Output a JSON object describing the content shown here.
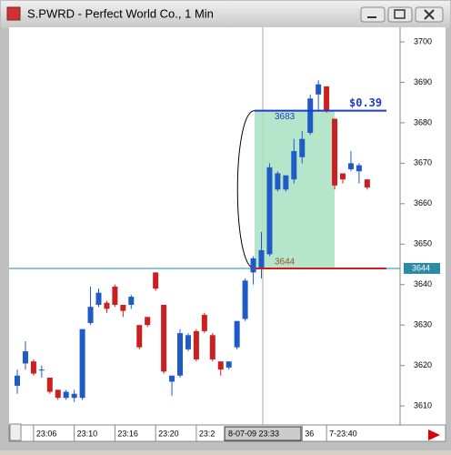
{
  "window": {
    "title": "S.PWRD - Perfect World Co., 1 Min"
  },
  "chart_data": {
    "type": "candlestick",
    "categories": [
      null,
      null,
      "23:06",
      null,
      null,
      null,
      null,
      "23:10",
      null,
      null,
      null,
      null,
      "23:16",
      null,
      null,
      null,
      null,
      "23:20",
      null,
      null,
      null,
      null,
      "23:2",
      null,
      null,
      null,
      null,
      null,
      null,
      null,
      null,
      null,
      null,
      null,
      null,
      "36",
      null,
      null,
      "7-23:40",
      null,
      null,
      null,
      null,
      null
    ],
    "open": [
      3615,
      3620.5,
      3621,
      3619,
      3617,
      3614,
      3612,
      3612,
      3612,
      3630.5,
      3635,
      3635.5,
      3639.5,
      3635,
      3635,
      3630,
      3632,
      3643,
      3635,
      3616,
      3617.5,
      3624,
      3628.5,
      3632.5,
      3627.5,
      3621,
      3619.5,
      3624.5,
      3631.5,
      3643,
      3644,
      3647.5,
      3663.5,
      3663.5,
      3666,
      3671.5,
      3677.5,
      3687,
      3689,
      3681,
      3667.5,
      3668.5,
      3668,
      3666
    ],
    "high": [
      3619,
      3626,
      3621.5,
      3620,
      3617,
      3614,
      3614,
      3614,
      3629,
      3639.5,
      3639,
      3636,
      3640,
      3635,
      3637.5,
      3630,
      3632,
      3643,
      3635,
      3617.5,
      3629,
      3628,
      3629,
      3633,
      3628,
      3621,
      3621,
      3631,
      3641.5,
      3647,
      3653,
      3670,
      3668,
      3667,
      3676,
      3678,
      3687,
      3690.5,
      3689,
      3681,
      3667.5,
      3673,
      3670,
      3666
    ],
    "low": [
      3613,
      3619,
      3617.5,
      3617,
      3613,
      3611.5,
      3611.5,
      3611,
      3611.5,
      3630,
      3634.5,
      3633,
      3634.5,
      3632,
      3634,
      3624,
      3629.5,
      3638.5,
      3618,
      3612.5,
      3617,
      3623.5,
      3621,
      3628,
      3621,
      3617.5,
      3619,
      3624,
      3631,
      3640,
      3641.5,
      3647,
      3663,
      3663,
      3665,
      3670,
      3677,
      3683,
      3682.5,
      3663.5,
      3665,
      3668,
      3665,
      3663.5
    ],
    "close": [
      3617.5,
      3623.5,
      3618,
      3619,
      3613.5,
      3612,
      3613.5,
      3613,
      3629,
      3634.5,
      3638,
      3634,
      3635,
      3633.5,
      3637,
      3624.5,
      3630,
      3639,
      3618.5,
      3617.5,
      3628,
      3627.5,
      3621.5,
      3628.5,
      3621.5,
      3619,
      3621,
      3631,
      3641,
      3646.5,
      3648.5,
      3669,
      3667.5,
      3667,
      3673,
      3676,
      3686,
      3689.5,
      3683,
      3664.5,
      3666,
      3670,
      3669.5,
      3664
    ],
    "up_color": "#1e5bc6",
    "down_color": "#cc1f1f",
    "ylim": [
      3605.3,
      3703.6
    ],
    "yticks": [
      3610,
      3620,
      3630,
      3640,
      3650,
      3660,
      3670,
      3680,
      3690,
      3700
    ],
    "last_price": 3644,
    "crosshair_label": "8-07-09 23:33",
    "measure": {
      "high": 3683,
      "low": 3644,
      "change_label": "$0.39"
    }
  }
}
